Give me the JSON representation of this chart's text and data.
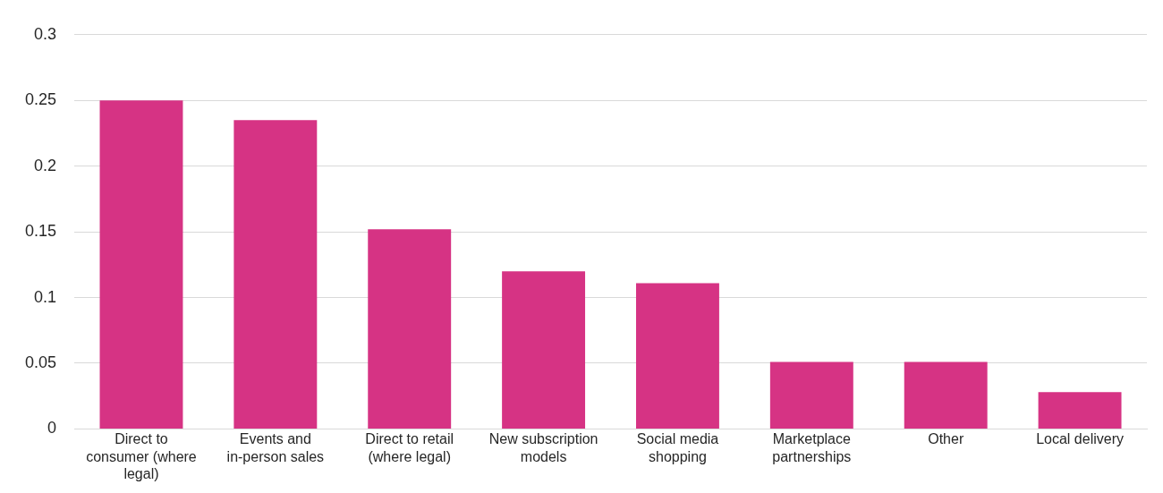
{
  "chart_data": {
    "type": "bar",
    "categories": [
      "Direct to consumer (where legal)",
      "Events and in-person sales",
      "Direct to retail (where legal)",
      "New subscription models",
      "Social media shopping",
      "Marketplace partnerships",
      "Other",
      "Local delivery"
    ],
    "values": [
      0.25,
      0.235,
      0.152,
      0.12,
      0.111,
      0.051,
      0.051,
      0.028
    ],
    "color": "#d63384",
    "ylim": [
      0,
      0.3
    ],
    "yticks": [
      0,
      0.05,
      0.1,
      0.15,
      0.2,
      0.25,
      0.3
    ],
    "grid": "y",
    "legend": false
  }
}
